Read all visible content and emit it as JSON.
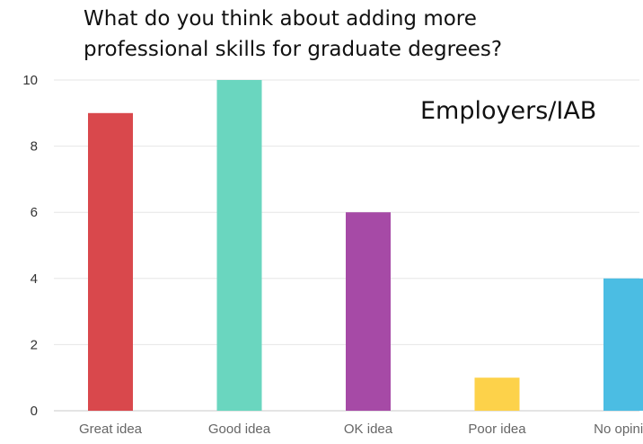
{
  "chart_data": {
    "type": "bar",
    "title": "What do you  think about adding more\nprofessional skills for graduate degrees?",
    "annotation": "Employers/IAB",
    "categories": [
      "Great idea",
      "Good idea",
      "OK idea",
      "Poor idea",
      "No opinion"
    ],
    "values": [
      9,
      10,
      6,
      1,
      4
    ],
    "colors": [
      "#d9484c",
      "#6ad6bf",
      "#a64aa6",
      "#fdd24a",
      "#4bbde3"
    ],
    "ylim": [
      0,
      10
    ],
    "yticks": [
      0,
      2,
      4,
      6,
      8,
      10
    ],
    "grid": true,
    "xlabel": "",
    "ylabel": ""
  }
}
